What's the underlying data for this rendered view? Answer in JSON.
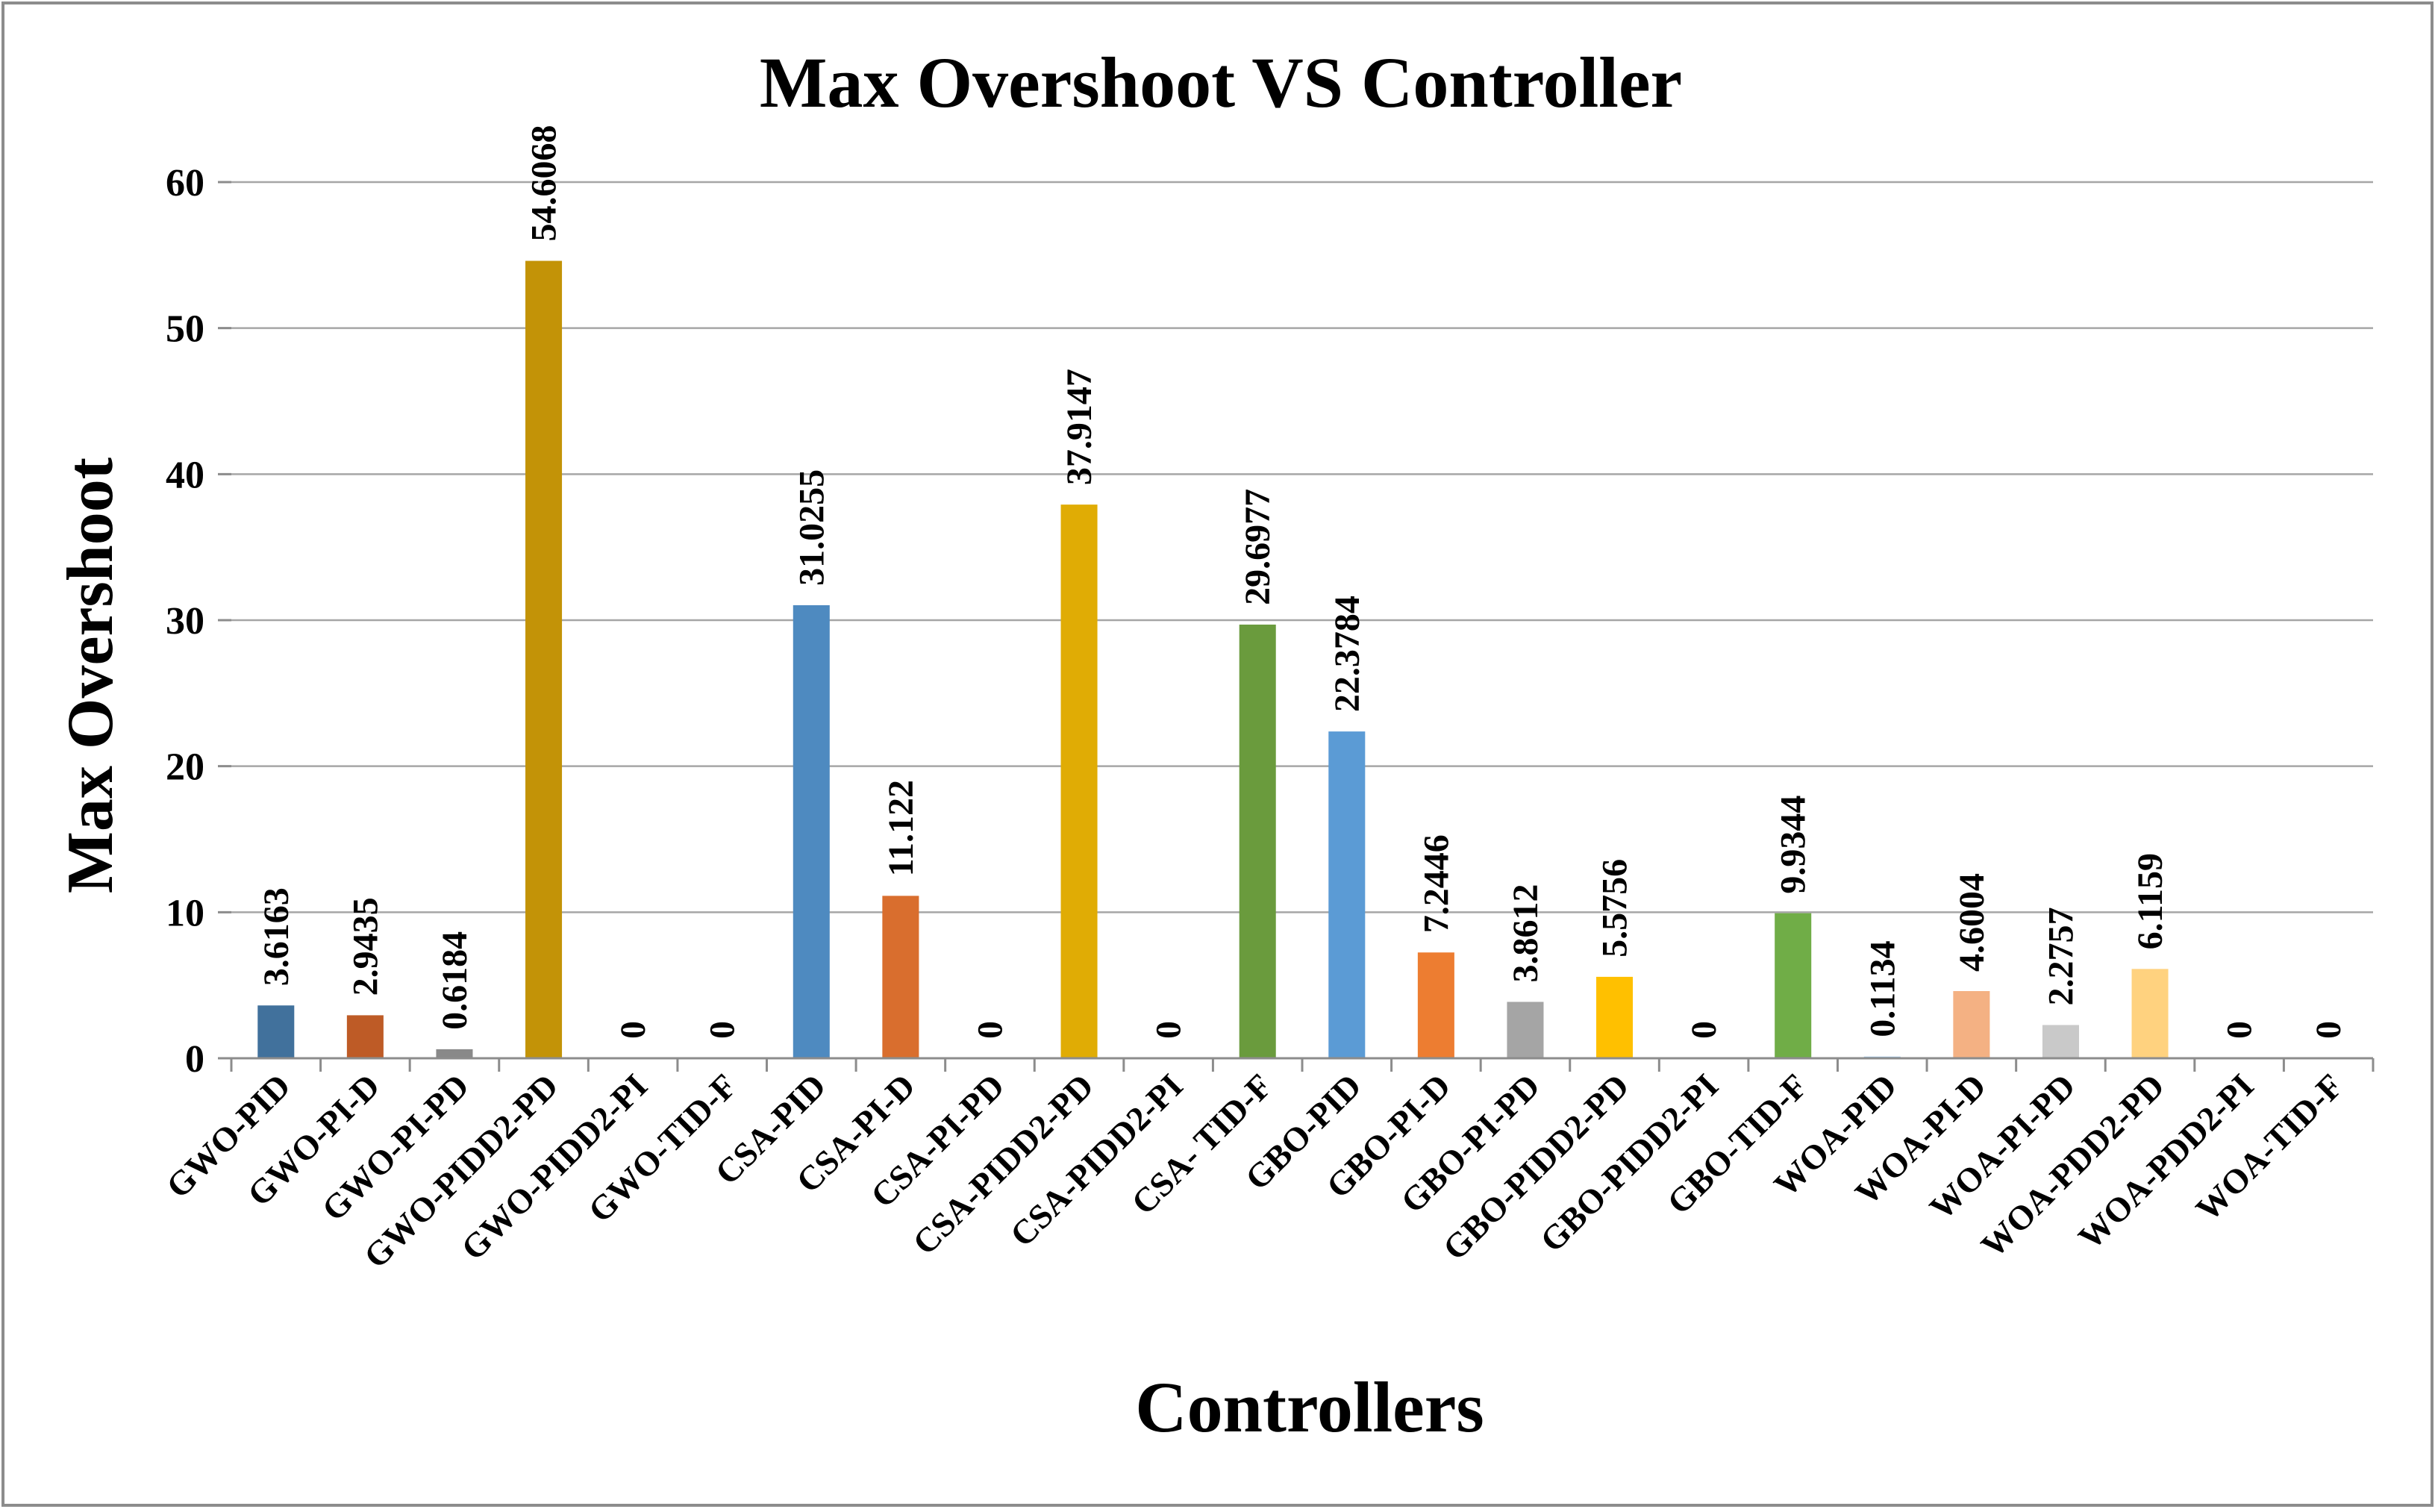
{
  "chart_data": {
    "type": "bar",
    "title": "Max Overshoot VS Controller",
    "xlabel": "Controllers",
    "ylabel": "Max Overshoot",
    "ylim": [
      0,
      60
    ],
    "yticks": [
      0,
      10,
      20,
      30,
      40,
      50,
      60
    ],
    "grid": true,
    "legend": "none",
    "categories": [
      "GWO-PID",
      "GWO-PI-D",
      "GWO-PI-PD",
      "GWO-PIDD2-PD",
      "GWO-PIDD2-PI",
      "GWO-TID-F",
      "CSA-PID",
      "CSA-PI-D",
      "CSA-PI-PD",
      "CSA-PIDD2-PD",
      "CSA-PIDD2-PI",
      "CSA- TID-F",
      "GBO-PID",
      "GBO-PI-D",
      "GBO-PI-PD",
      "GBO-PIDD2-PD",
      "GBO-PIDD2-PI",
      "GBO-TID-F",
      "WOA-PID",
      "WOA-PI-D",
      "WOA-PI-PD",
      "WOA-PDD2-PD",
      "WOA-PDD2-PI",
      "WOA-TID-F"
    ],
    "values": [
      3.6163,
      2.9435,
      0.6184,
      54.6068,
      0,
      0,
      31.0255,
      11.122,
      0,
      37.9147,
      0,
      29.6977,
      22.3784,
      7.2446,
      3.8612,
      5.5756,
      0,
      9.9344,
      0.1134,
      4.6004,
      2.2757,
      6.1159,
      0,
      0
    ],
    "data_labels": [
      "3.6163",
      "2.9435",
      "0.6184",
      "54.6068",
      "0",
      "0",
      "31.0255",
      "11.122",
      "0",
      "37.9147",
      "0",
      "29.6977",
      "22.3784",
      "7.2446",
      "3.8612",
      "5.5756",
      "0",
      "9.9344",
      "0.1134",
      "4.6004",
      "2.2757",
      "6.1159",
      "0",
      "0"
    ],
    "colors": [
      "#41719C",
      "#BE5B26",
      "#898989",
      "#C39307",
      "#2E5C8A",
      "#8C4A1E",
      "#4E8AC0",
      "#D96E2E",
      "#A6A6A6",
      "#E0AC05",
      "#5B9BD5",
      "#6A9B3D",
      "#5B9BD5",
      "#ED7D31",
      "#A5A5A5",
      "#FFC000",
      "#4472C4",
      "#70AD47",
      "#9DC3E6",
      "#F4B183",
      "#C9C9C9",
      "#FFD27F",
      "#7FA6DB",
      "#A9D18E"
    ]
  }
}
